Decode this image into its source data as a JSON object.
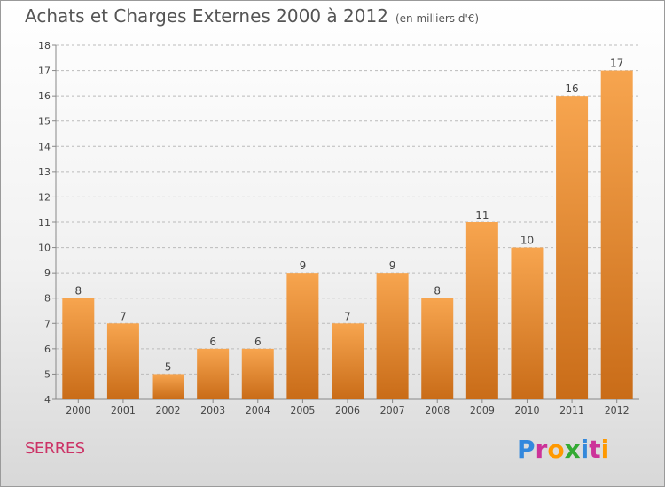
{
  "header": {
    "title": "Achats et Charges Externes 2000 à 2012",
    "subtitle": "(en milliers d'€)"
  },
  "footer": {
    "city": "SERRES",
    "brand_logo": "Proxiti",
    "brand_colors": [
      "#3388dd",
      "#cc3399",
      "#ff9900",
      "#33aa33",
      "#3388dd",
      "#cc3399",
      "#ff9900"
    ]
  },
  "colors": {
    "bar_top": "#f7a54f",
    "bar_bottom": "#c96c18",
    "axis": "#888888",
    "grid": "#bbbbbb",
    "text": "#444444"
  },
  "chart_data": {
    "type": "bar",
    "categories": [
      "2000",
      "2001",
      "2002",
      "2003",
      "2004",
      "2005",
      "2006",
      "2007",
      "2008",
      "2009",
      "2010",
      "2011",
      "2012"
    ],
    "values": [
      8,
      7,
      5,
      6,
      6,
      9,
      7,
      9,
      8,
      11,
      10,
      16,
      17
    ],
    "yticks": [
      4,
      5,
      6,
      7,
      8,
      9,
      10,
      11,
      12,
      13,
      14,
      15,
      16,
      17,
      18
    ],
    "ylim": [
      4,
      18
    ],
    "grid": "horizontal dashed"
  }
}
